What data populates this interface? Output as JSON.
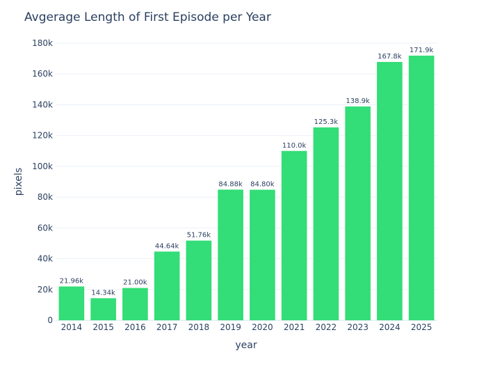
{
  "chart_data": {
    "type": "bar",
    "title": "Avgerage Length of First Episode per Year",
    "xlabel": "year",
    "ylabel": "pixels",
    "ylim": [
      0,
      180000
    ],
    "grid": true,
    "bar_color": "#33dd77",
    "categories": [
      "2014",
      "2015",
      "2016",
      "2017",
      "2018",
      "2019",
      "2020",
      "2021",
      "2022",
      "2023",
      "2024",
      "2025"
    ],
    "values": [
      21960,
      14340,
      21000,
      44640,
      51760,
      84880,
      84800,
      110000,
      125300,
      138900,
      167800,
      171900
    ],
    "data_labels": [
      "21.96k",
      "14.34k",
      "21.00k",
      "44.64k",
      "51.76k",
      "84.88k",
      "84.80k",
      "110.0k",
      "125.3k",
      "138.9k",
      "167.8k",
      "171.9k"
    ],
    "y_ticks": [
      0,
      20000,
      40000,
      60000,
      80000,
      100000,
      120000,
      140000,
      160000,
      180000
    ],
    "y_tick_labels": [
      "0",
      "20k",
      "40k",
      "60k",
      "80k",
      "100k",
      "120k",
      "140k",
      "160k",
      "180k"
    ]
  }
}
